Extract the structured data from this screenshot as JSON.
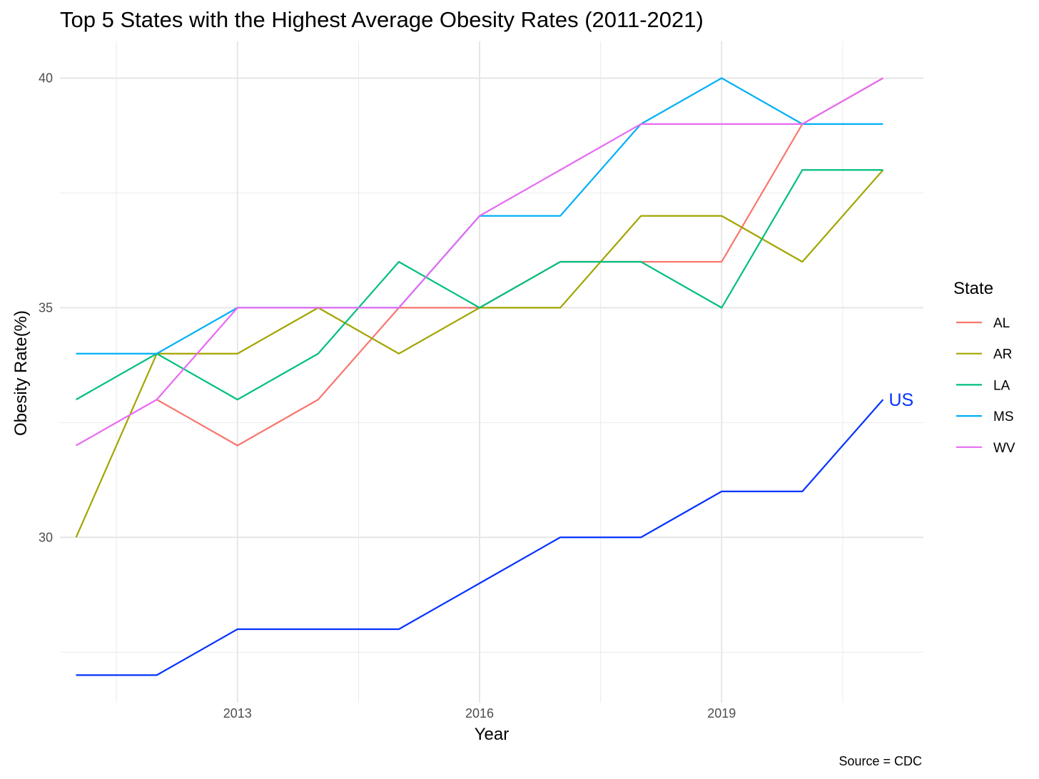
{
  "chart_data": {
    "type": "line",
    "title": "Top 5 States with the Highest Average Obesity Rates (2011-2021)",
    "xlabel": "Year",
    "ylabel": "Obesity Rate(%)",
    "caption": "Source = CDC",
    "x": [
      2011,
      2012,
      2013,
      2014,
      2015,
      2016,
      2017,
      2018,
      2019,
      2020,
      2021
    ],
    "x_ticks": [
      2013,
      2016,
      2019
    ],
    "x_tick_labels": [
      "2013",
      "2016",
      "2019"
    ],
    "y_ticks": [
      30,
      35,
      40
    ],
    "y_tick_labels": [
      "30",
      "35",
      "40"
    ],
    "xlim": [
      2010.8,
      2021.5
    ],
    "ylim": [
      26.4,
      40.8
    ],
    "grid": true,
    "legend": {
      "title": "State",
      "position": "right",
      "entries": [
        "AL",
        "AR",
        "LA",
        "MS",
        "WV"
      ]
    },
    "series": [
      {
        "name": "AL",
        "color": "#F8766D",
        "values": [
          null,
          33,
          32,
          33,
          35,
          35,
          36,
          36,
          36,
          39,
          40
        ]
      },
      {
        "name": "AR",
        "color": "#A3A500",
        "values": [
          30,
          34,
          34,
          35,
          34,
          35,
          35,
          37,
          37,
          36,
          38
        ]
      },
      {
        "name": "LA",
        "color": "#00BF7D",
        "values": [
          33,
          34,
          33,
          34,
          36,
          35,
          36,
          36,
          35,
          38,
          38
        ]
      },
      {
        "name": "MS",
        "color": "#00B0F6",
        "values": [
          34,
          34,
          35,
          35,
          35,
          37,
          37,
          39,
          40,
          39,
          39
        ]
      },
      {
        "name": "WV",
        "color": "#E76BF3",
        "values": [
          32,
          33,
          35,
          35,
          35,
          37,
          38,
          39,
          39,
          39,
          40
        ]
      }
    ],
    "reference_series": {
      "name": "US",
      "label": "US",
      "color": "#0433FF",
      "values": [
        27,
        27,
        28,
        28,
        28,
        29,
        30,
        30,
        31,
        31,
        33
      ]
    }
  }
}
